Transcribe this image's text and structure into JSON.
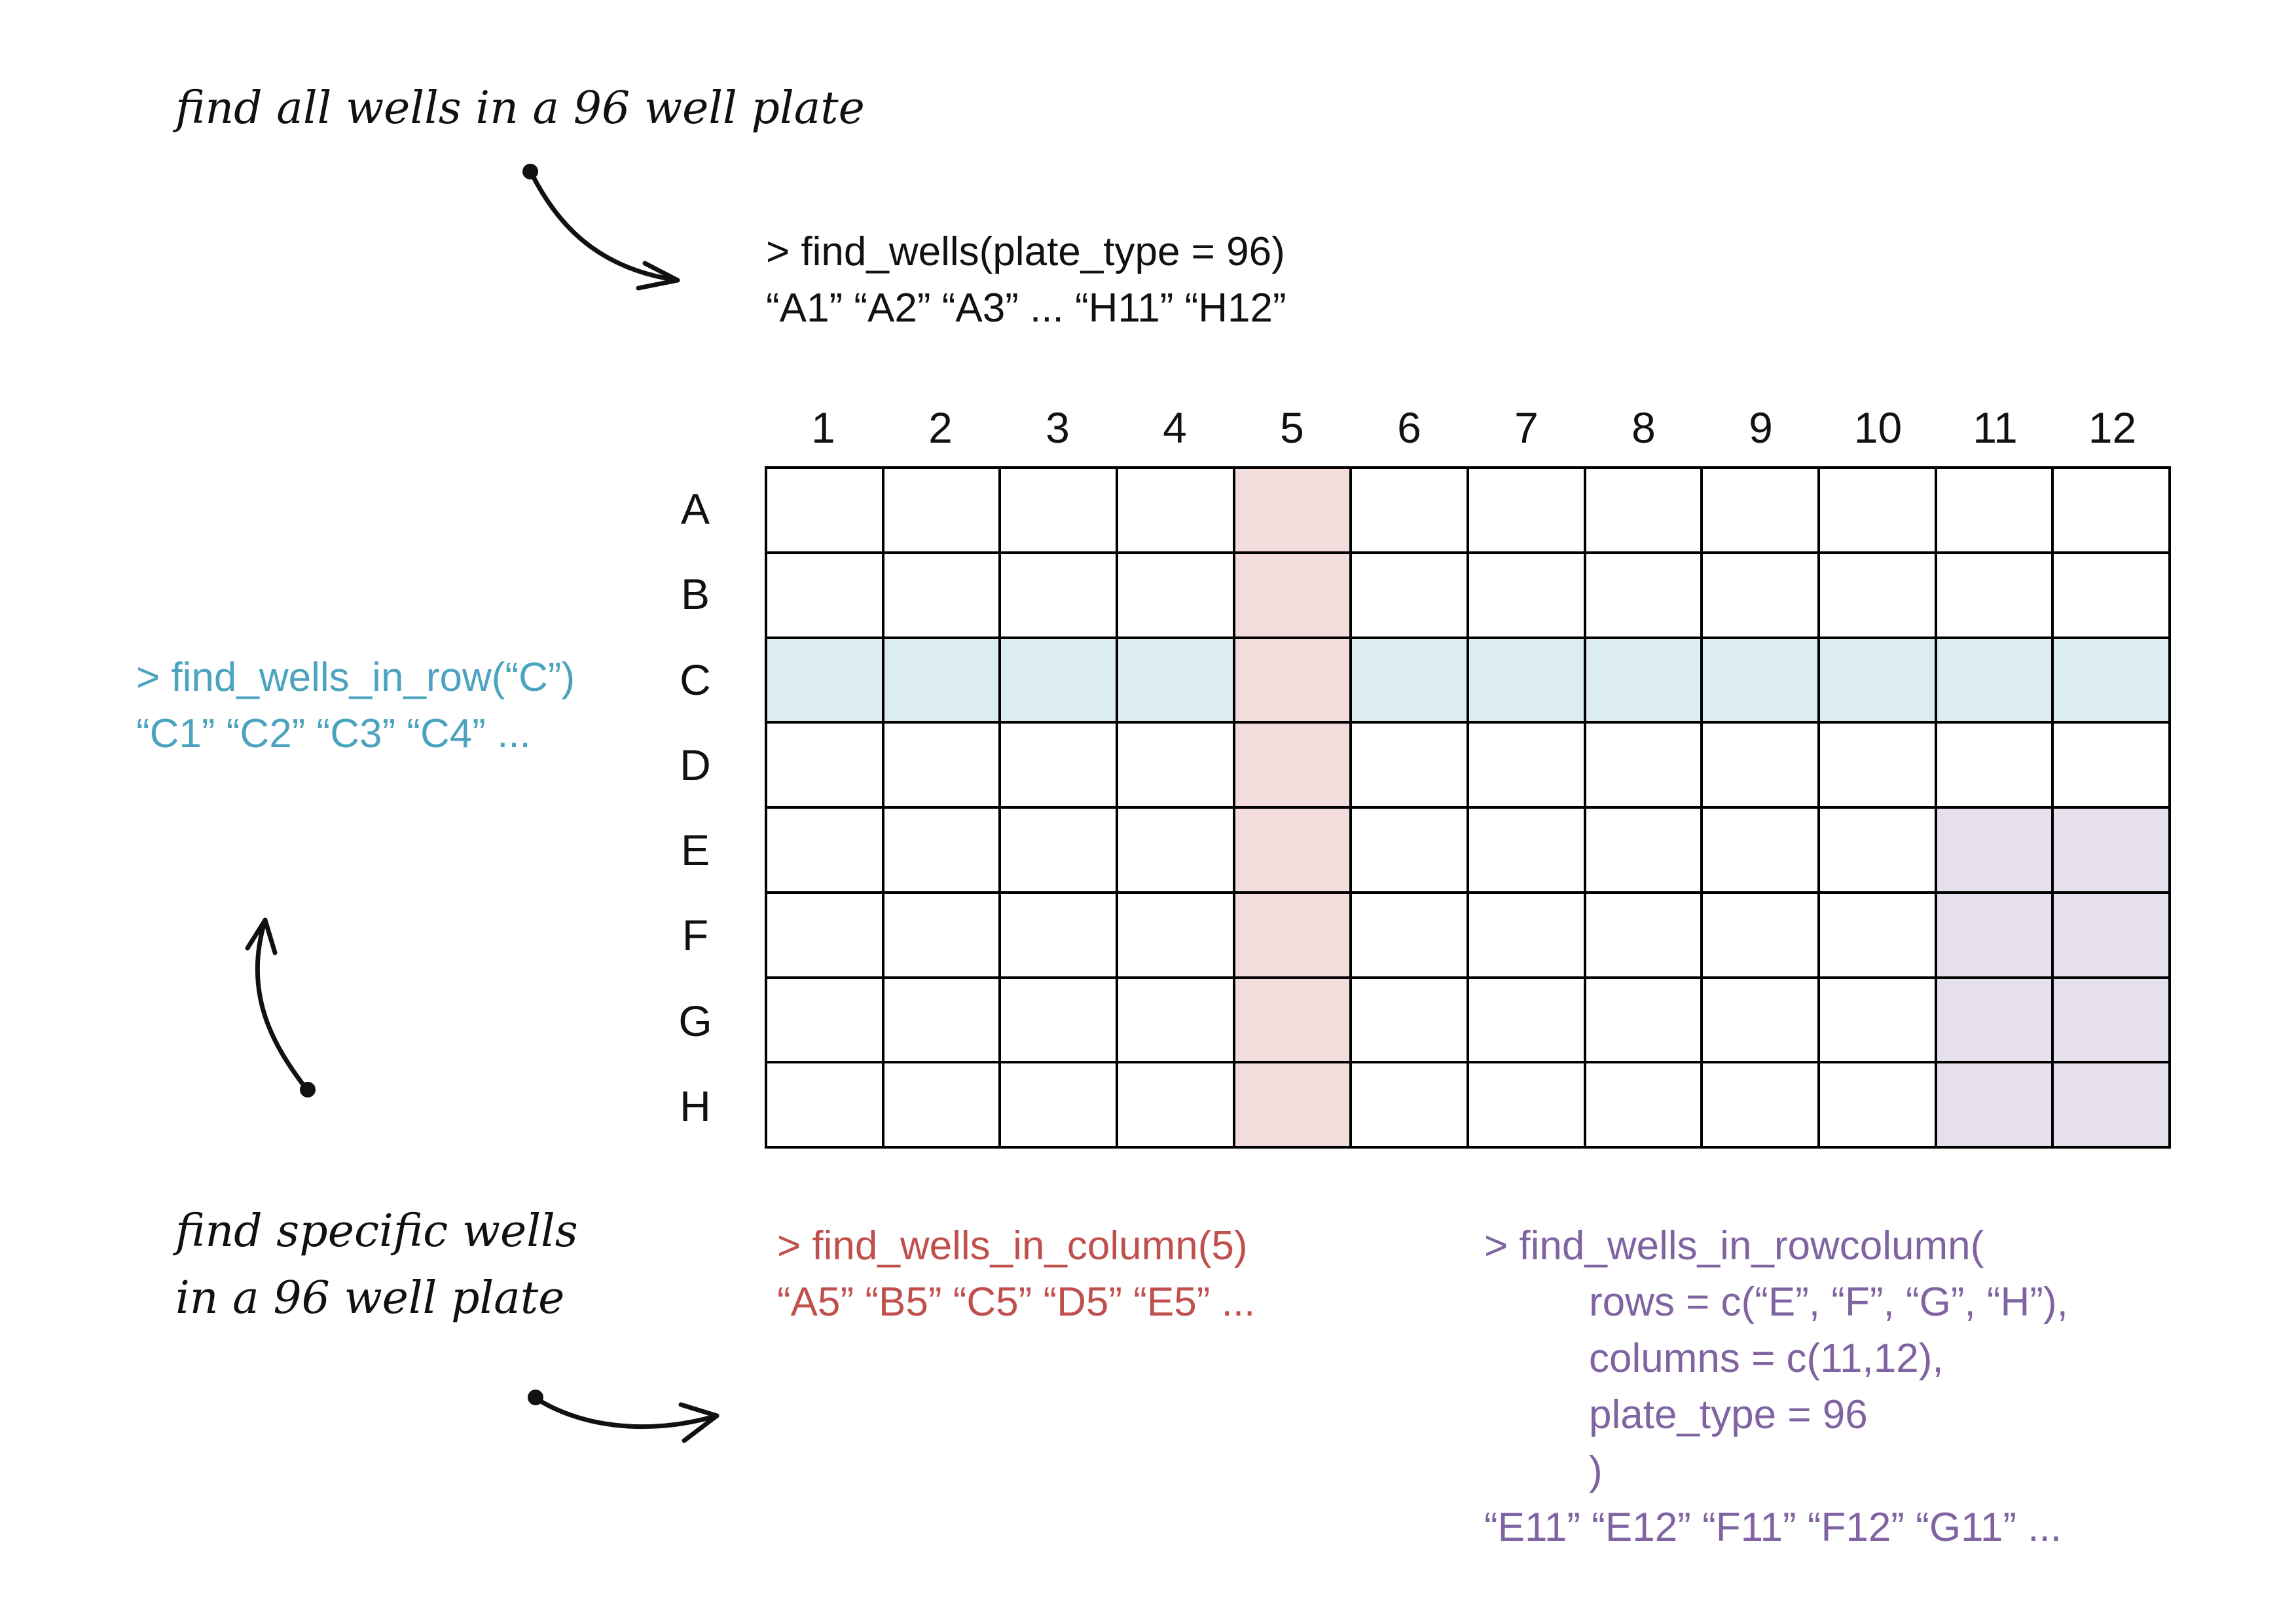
{
  "colors": {
    "text": "#111111",
    "row_highlight": "#dcedf2",
    "column_highlight": "#f2dcdc",
    "rowcolumn_highlight": "#e6e0ec",
    "row_code": "#4ba3bf",
    "column_code": "#c0504d",
    "rowcolumn_code": "#8064a2"
  },
  "notes": {
    "all_wells": "find all wells in a 96 well plate",
    "specific_line1": "find specific wells",
    "specific_line2": "in a 96 well plate"
  },
  "code": {
    "all": {
      "call": "> find_wells(plate_type = 96)",
      "result": "“A1” “A2” “A3” ... “H11” “H12”"
    },
    "row": {
      "call": "> find_wells_in_row(“C”)",
      "result": "“C1” “C2” “C3” “C4” ..."
    },
    "column": {
      "call": "> find_wells_in_column(5)",
      "result": "“A5” “B5” “C5” “D5” “E5” ..."
    },
    "rowcolumn": {
      "call": "> find_wells_in_rowcolumn(",
      "arg_rows": "rows = c(“E”, “F”, “G”, “H”),",
      "arg_columns": "columns = c(11,12),",
      "arg_plate": "plate_type = 96",
      "close": ")",
      "result": "“E11” “E12” “F11” “F12” “G11” ..."
    }
  },
  "plate": {
    "columns": [
      "1",
      "2",
      "3",
      "4",
      "5",
      "6",
      "7",
      "8",
      "9",
      "10",
      "11",
      "12"
    ],
    "rows": [
      "A",
      "B",
      "C",
      "D",
      "E",
      "F",
      "G",
      "H"
    ],
    "highlight_row": "C",
    "highlight_column": "5",
    "highlight_block": {
      "rows": [
        "E",
        "F",
        "G",
        "H"
      ],
      "columns": [
        "11",
        "12"
      ]
    }
  }
}
